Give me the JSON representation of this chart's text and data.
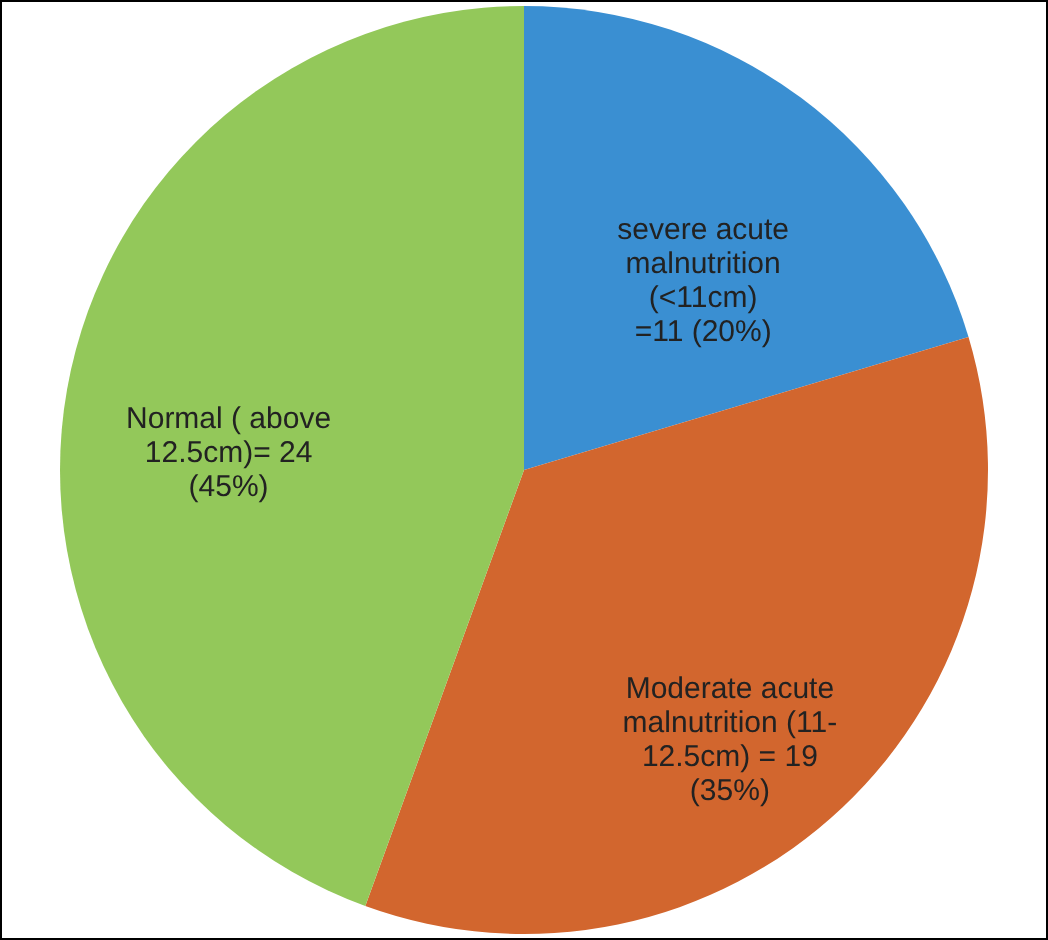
{
  "chart_data": {
    "type": "pie",
    "categories": [
      "severe acute\nmalnutrition\n(<11cm)\n=11 (20%)",
      "Moderate acute\nmalnutrition (11-\n12.5cm) = 19\n(35%)",
      "Normal ( above\n12.5cm)= 24\n(45%)"
    ],
    "values": [
      11,
      19,
      24
    ],
    "colors": [
      "#3a8fd2",
      "#d2662e",
      "#93c85a"
    ]
  }
}
